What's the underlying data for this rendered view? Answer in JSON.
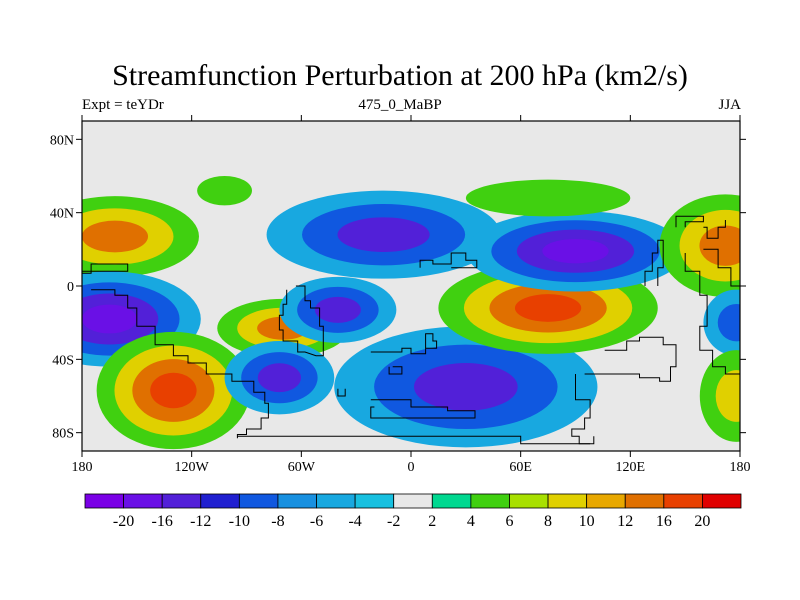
{
  "title": "Streamfunction Perturbation at 200 hPa (km2/s)",
  "left_label": "Expt = teYDr",
  "center_label": "475_0_MaBP",
  "right_label": "JJA",
  "map": {
    "projection": "cylindrical equidistant",
    "lon_range": [
      -180,
      180
    ],
    "lat_range": [
      -90,
      90
    ],
    "background_color": "#e8e8e8",
    "x_ticks": [
      {
        "lon": -180,
        "label": "180"
      },
      {
        "lon": -120,
        "label": "120W"
      },
      {
        "lon": -60,
        "label": "60W"
      },
      {
        "lon": 0,
        "label": "0"
      },
      {
        "lon": 60,
        "label": "60E"
      },
      {
        "lon": 120,
        "label": "120E"
      },
      {
        "lon": 180,
        "label": "180"
      }
    ],
    "y_ticks": [
      {
        "lat": 80,
        "label": "80N"
      },
      {
        "lat": 40,
        "label": "40N"
      },
      {
        "lat": 0,
        "label": "0"
      },
      {
        "lat": -40,
        "label": "40S"
      },
      {
        "lat": -80,
        "label": "80S"
      }
    ],
    "coastlines": [
      [
        [
          -180,
          7
        ],
        [
          -175,
          7
        ],
        [
          -175,
          12
        ],
        [
          -155,
          12
        ],
        [
          -155,
          8
        ],
        [
          -180,
          8
        ]
      ],
      [
        [
          -175,
          -2
        ],
        [
          -162,
          -2
        ],
        [
          -162,
          -5
        ],
        [
          -155,
          -5
        ],
        [
          -155,
          -12
        ],
        [
          -150,
          -12
        ],
        [
          -150,
          -22
        ],
        [
          -140,
          -22
        ],
        [
          -140,
          -32
        ],
        [
          -130,
          -32
        ],
        [
          -130,
          -38
        ],
        [
          -122,
          -38
        ],
        [
          -122,
          -42
        ],
        [
          -112,
          -42
        ],
        [
          -112,
          -48
        ],
        [
          -98,
          -48
        ],
        [
          -98,
          -52
        ],
        [
          -86,
          -52
        ],
        [
          -86,
          -58
        ],
        [
          -80,
          -58
        ],
        [
          -80,
          -64
        ],
        [
          -78,
          -64
        ],
        [
          -78,
          -72
        ],
        [
          -82,
          -72
        ],
        [
          -82,
          -78
        ],
        [
          -90,
          -78
        ],
        [
          -90,
          -81
        ],
        [
          -95,
          -81
        ],
        [
          -95,
          -83
        ]
      ],
      [
        [
          -63,
          0
        ],
        [
          -58,
          0
        ],
        [
          -58,
          -8
        ],
        [
          -55,
          -8
        ],
        [
          -55,
          -12
        ],
        [
          -50,
          -12
        ],
        [
          -50,
          -22
        ],
        [
          -48,
          -22
        ],
        [
          -48,
          -30
        ],
        [
          -48,
          -38
        ],
        [
          -52,
          -38
        ],
        [
          -58,
          -36
        ],
        [
          -62,
          -36
        ],
        [
          -62,
          -30
        ],
        [
          -70,
          -30
        ],
        [
          -70,
          -24
        ],
        [
          -72,
          -24
        ],
        [
          -72,
          -16
        ],
        [
          -70,
          -16
        ],
        [
          -70,
          -10
        ],
        [
          -68,
          -10
        ],
        [
          -68,
          -2
        ]
      ],
      [
        [
          -40,
          -56
        ],
        [
          -40,
          -60
        ],
        [
          -36,
          -60
        ],
        [
          -36,
          -56
        ]
      ],
      [
        [
          -95,
          -82
        ],
        [
          60,
          -82
        ],
        [
          60,
          -86
        ],
        [
          100,
          -86
        ],
        [
          100,
          -82
        ]
      ],
      [
        [
          -22,
          -36
        ],
        [
          -5,
          -36
        ],
        [
          -5,
          -34
        ],
        [
          0,
          -34
        ],
        [
          0,
          -37
        ],
        [
          8,
          -37
        ],
        [
          8,
          -34
        ],
        [
          14,
          -34
        ],
        [
          14,
          -30
        ],
        [
          12,
          -30
        ],
        [
          12,
          -26
        ],
        [
          8,
          -26
        ],
        [
          8,
          -34
        ]
      ],
      [
        [
          -10,
          -44
        ],
        [
          -5,
          -44
        ],
        [
          -5,
          -48
        ],
        [
          -12,
          -48
        ],
        [
          -12,
          -44
        ]
      ],
      [
        [
          -22,
          -62
        ],
        [
          0,
          -62
        ],
        [
          0,
          -66
        ],
        [
          20,
          -66
        ],
        [
          20,
          -68
        ],
        [
          35,
          -68
        ],
        [
          35,
          -72
        ],
        [
          -22,
          -72
        ],
        [
          -22,
          -66
        ],
        [
          -20,
          -66
        ]
      ],
      [
        [
          5,
          10
        ],
        [
          5,
          14
        ],
        [
          12,
          14
        ],
        [
          12,
          12
        ],
        [
          22,
          12
        ],
        [
          22,
          18
        ],
        [
          30,
          18
        ],
        [
          30,
          14
        ],
        [
          36,
          14
        ],
        [
          36,
          10
        ],
        [
          22,
          10
        ]
      ],
      [
        [
          90,
          -48
        ],
        [
          90,
          -62
        ],
        [
          98,
          -62
        ],
        [
          98,
          -72
        ],
        [
          95,
          -72
        ],
        [
          95,
          -78
        ],
        [
          88,
          -78
        ],
        [
          88,
          -82
        ],
        [
          92,
          -82
        ],
        [
          92,
          -86
        ],
        [
          98,
          -86
        ]
      ],
      [
        [
          95,
          -48
        ],
        [
          125,
          -48
        ],
        [
          125,
          -50
        ],
        [
          136,
          -50
        ],
        [
          136,
          -52
        ],
        [
          142,
          -52
        ],
        [
          142,
          -44
        ],
        [
          145,
          -44
        ],
        [
          145,
          -32
        ],
        [
          138,
          -32
        ],
        [
          138,
          -28
        ],
        [
          125,
          -28
        ],
        [
          125,
          -30
        ],
        [
          118,
          -30
        ],
        [
          118,
          -35
        ],
        [
          106,
          -35
        ]
      ],
      [
        [
          128,
          0
        ],
        [
          128,
          8
        ],
        [
          132,
          8
        ],
        [
          132,
          18
        ],
        [
          135,
          18
        ],
        [
          135,
          25
        ],
        [
          138,
          25
        ],
        [
          138,
          10
        ],
        [
          135,
          10
        ],
        [
          135,
          0
        ]
      ],
      [
        [
          145,
          32
        ],
        [
          145,
          38
        ],
        [
          160,
          38
        ],
        [
          160,
          35
        ],
        [
          150,
          35
        ],
        [
          150,
          32
        ]
      ],
      [
        [
          150,
          18
        ],
        [
          150,
          8
        ],
        [
          158,
          8
        ],
        [
          158,
          -5
        ],
        [
          162,
          -5
        ],
        [
          162,
          -22
        ],
        [
          158,
          -22
        ],
        [
          158,
          -35
        ],
        [
          165,
          -35
        ],
        [
          165,
          -44
        ],
        [
          172,
          -44
        ],
        [
          172,
          -48
        ],
        [
          180,
          -48
        ]
      ],
      [
        [
          160,
          20
        ],
        [
          168,
          20
        ],
        [
          168,
          10
        ],
        [
          175,
          10
        ],
        [
          175,
          0
        ],
        [
          180,
          0
        ]
      ],
      [
        [
          160,
          32
        ],
        [
          162,
          32
        ],
        [
          162,
          26
        ],
        [
          168,
          26
        ],
        [
          168,
          32
        ],
        [
          172,
          32
        ],
        [
          172,
          36
        ]
      ]
    ],
    "field_blobs": [
      {
        "lon": -162,
        "lat": 27,
        "rx": 46,
        "ry": 22,
        "levels": [
          4,
          8,
          12
        ]
      },
      {
        "lon": -102,
        "lat": 52,
        "rx": 15,
        "ry": 8,
        "levels": [
          4
        ]
      },
      {
        "lon": -165,
        "lat": -18,
        "rx": 50,
        "ry": 26,
        "levels": [
          -4,
          -8,
          -12,
          -16
        ]
      },
      {
        "lon": -130,
        "lat": -57,
        "rx": 42,
        "ry": 32,
        "levels": [
          4,
          8,
          12,
          16
        ]
      },
      {
        "lon": -70,
        "lat": -23,
        "rx": 36,
        "ry": 16,
        "levels": [
          4,
          8,
          12
        ]
      },
      {
        "lon": -72,
        "lat": -50,
        "rx": 30,
        "ry": 20,
        "levels": [
          -4,
          -8,
          -12
        ]
      },
      {
        "lon": -40,
        "lat": -13,
        "rx": 32,
        "ry": 18,
        "levels": [
          -4,
          -8,
          -12
        ]
      },
      {
        "lon": -15,
        "lat": 28,
        "rx": 64,
        "ry": 24,
        "levels": [
          -4,
          -8,
          -12
        ]
      },
      {
        "lon": 30,
        "lat": -55,
        "rx": 72,
        "ry": 33,
        "levels": [
          -4,
          -8,
          -12
        ]
      },
      {
        "lon": 75,
        "lat": -12,
        "rx": 60,
        "ry": 25,
        "levels": [
          4,
          8,
          12,
          16
        ]
      },
      {
        "lon": 90,
        "lat": 19,
        "rx": 60,
        "ry": 22,
        "levels": [
          -4,
          -8,
          -12,
          -16
        ]
      },
      {
        "lon": 75,
        "lat": 48,
        "rx": 45,
        "ry": 10,
        "levels": [
          4
        ]
      },
      {
        "lon": 172,
        "lat": 22,
        "rx": 36,
        "ry": 28,
        "levels": [
          4,
          8,
          12
        ]
      },
      {
        "lon": 178,
        "lat": -20,
        "rx": 18,
        "ry": 18,
        "levels": [
          -4,
          -8
        ]
      },
      {
        "lon": 178,
        "lat": -60,
        "rx": 20,
        "ry": 25,
        "levels": [
          4,
          8
        ]
      }
    ]
  },
  "colorbar": {
    "colors": [
      "#7a00e6",
      "#6a10e6",
      "#5220d8",
      "#2020d0",
      "#1058e0",
      "#1890e0",
      "#18a8e0",
      "#18c0e0",
      "#e8e8e8",
      "#00d890",
      "#40d010",
      "#a8e000",
      "#e0d000",
      "#e8a800",
      "#e07000",
      "#e84000",
      "#e00000"
    ],
    "labels": [
      "-20",
      "-16",
      "-12",
      "-10",
      "-8",
      "-6",
      "-4",
      "-2",
      "2",
      "4",
      "6",
      "8",
      "10",
      "12",
      "16",
      "20"
    ]
  }
}
